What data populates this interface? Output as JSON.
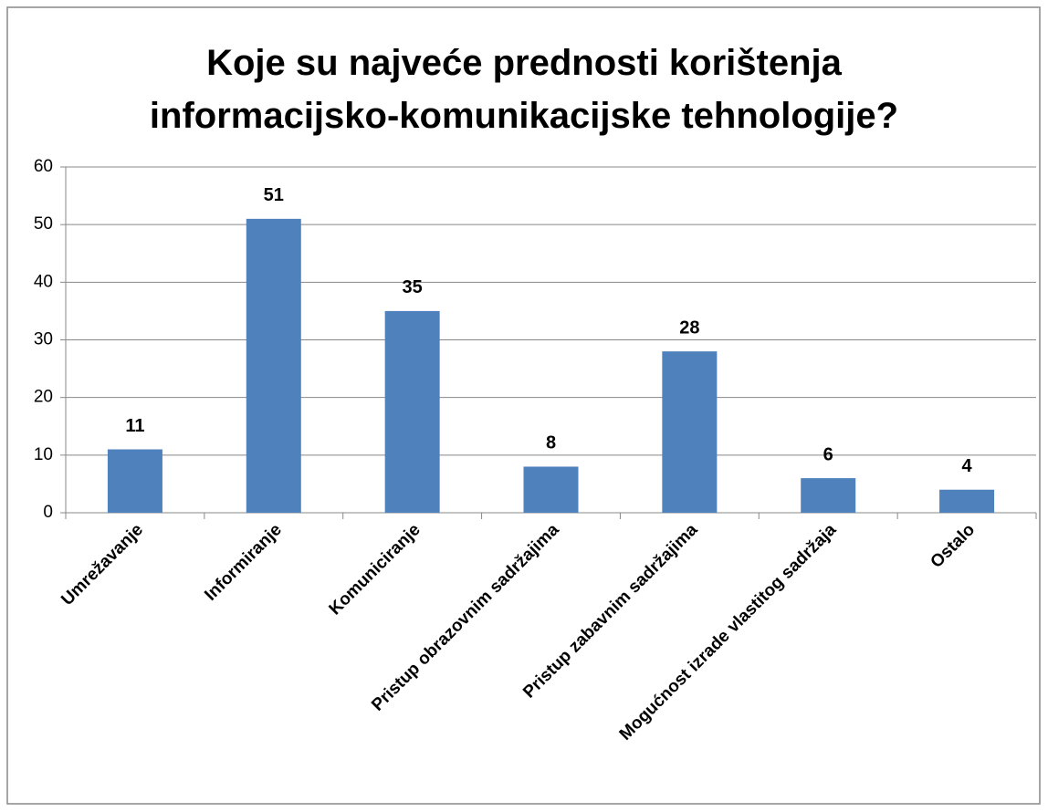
{
  "chart_data": {
    "type": "bar",
    "title": "Koje su najveće prednosti korištenja informacijsko-komunikacijske tehnologije?",
    "categories": [
      "Umrežavanje",
      "Informiranje",
      "Komuniciranje",
      "Pristup obrazovnim sadržajima",
      "Pristup zabavnim sadržajima",
      "Mogućnost izrade vlastitog sadržaja",
      "Ostalo"
    ],
    "values": [
      11,
      51,
      35,
      8,
      28,
      6,
      4
    ],
    "color": "#4f81bd",
    "ylim": [
      0,
      60
    ],
    "yticks": [
      0,
      10,
      20,
      30,
      40,
      50,
      60
    ],
    "grid": true
  }
}
